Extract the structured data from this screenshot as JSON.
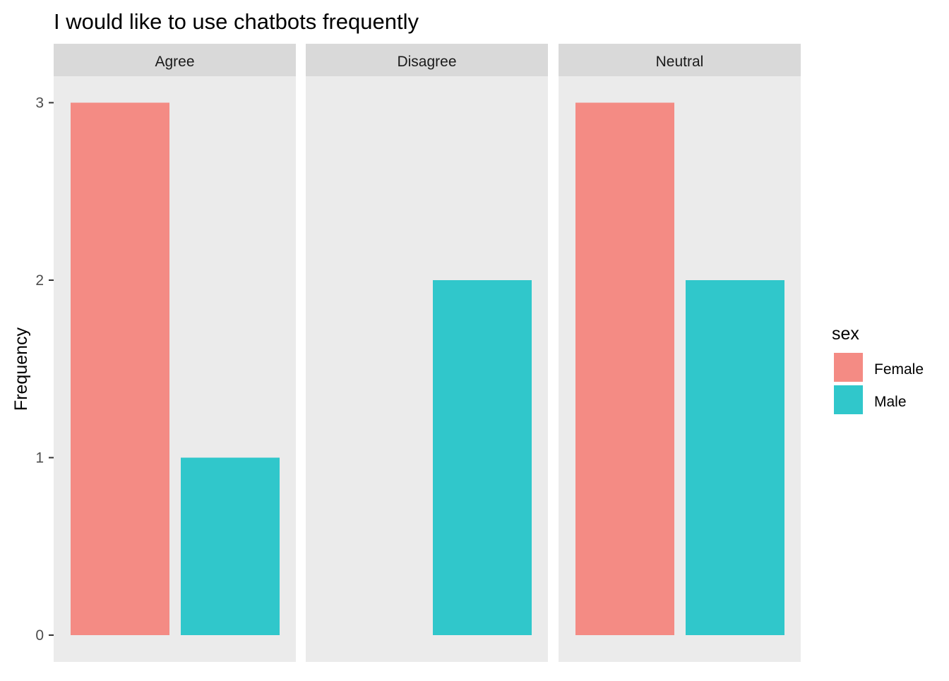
{
  "chart_data": {
    "type": "bar",
    "title": "I would like to use chatbots frequently",
    "xlabel": "",
    "ylabel": "Frequency",
    "ylim": [
      0,
      3
    ],
    "y_ticks": [
      0,
      1,
      2,
      3
    ],
    "grid": false,
    "legend": {
      "title": "sex",
      "position": "right",
      "entries": [
        "Female",
        "Male"
      ]
    },
    "colors": {
      "Female": "#F48B84",
      "Male": "#30C7CB",
      "panel_background": "#EBEBEB",
      "strip_background": "#D9D9D9"
    },
    "facets": [
      "Agree",
      "Disagree",
      "Neutral"
    ],
    "series": [
      {
        "name": "Female",
        "values": [
          3,
          0,
          3
        ]
      },
      {
        "name": "Male",
        "values": [
          1,
          2,
          2
        ]
      }
    ]
  }
}
